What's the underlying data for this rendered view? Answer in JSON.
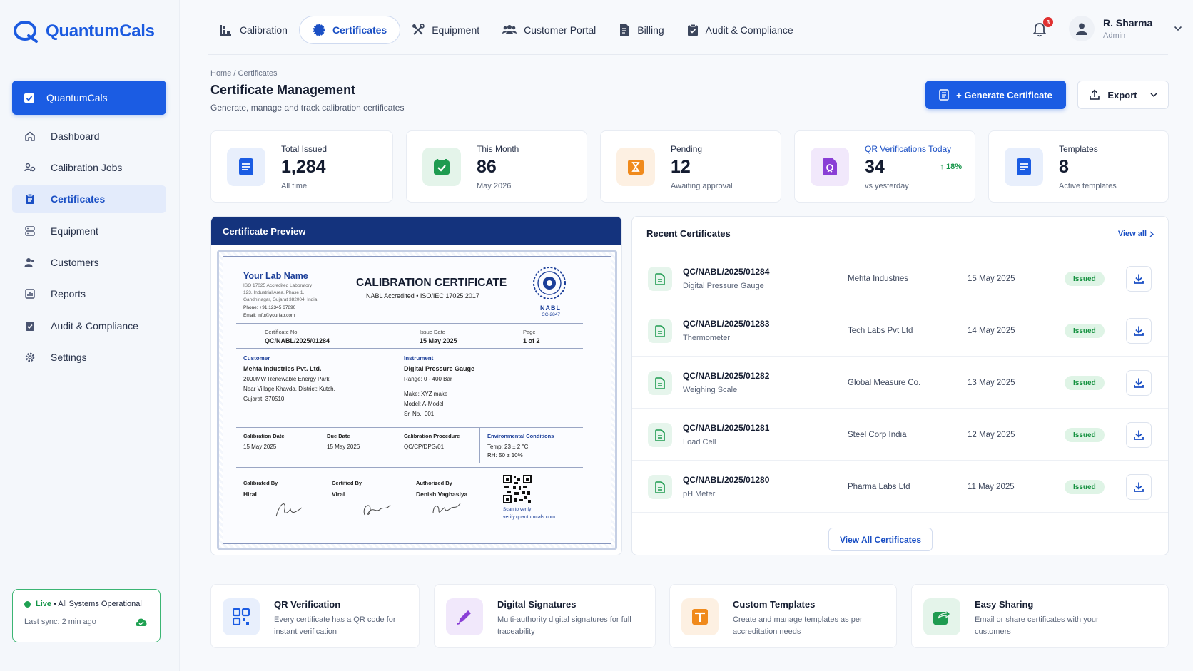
{
  "app": {
    "name": "QuantumCals"
  },
  "sidebar": {
    "brand_label": "QuantumCals",
    "items": [
      {
        "label": "Dashboard",
        "icon": "home-icon"
      },
      {
        "label": "Calibration Jobs",
        "icon": "users-gear-icon"
      },
      {
        "label": "Certificates",
        "icon": "certificate-icon",
        "active": true
      },
      {
        "label": "Equipment",
        "icon": "equipment-icon"
      },
      {
        "label": "Customers",
        "icon": "customers-icon"
      },
      {
        "label": "Reports",
        "icon": "reports-icon"
      },
      {
        "label": "Audit & Compliance",
        "icon": "clipboard-check-icon"
      },
      {
        "label": "Settings",
        "icon": "gear-icon"
      }
    ],
    "status": {
      "live": "Live",
      "text": "• All Systems Operational",
      "sync": "Last sync: 2 min ago"
    }
  },
  "topnav": {
    "tabs": [
      {
        "label": "Calibration",
        "icon": "calibration-icon"
      },
      {
        "label": "Certificates",
        "icon": "badge-icon",
        "active": true
      },
      {
        "label": "Equipment",
        "icon": "tools-icon"
      },
      {
        "label": "Customer Portal",
        "icon": "people-icon"
      },
      {
        "label": "Billing",
        "icon": "billing-icon"
      },
      {
        "label": "Audit & Compliance",
        "icon": "clipboard-icon"
      }
    ],
    "notifications": "3",
    "user": {
      "name": "R. Sharma",
      "role": "Admin"
    }
  },
  "page": {
    "breadcrumb": "Home / Certificates",
    "title": "Certificate Management",
    "subtitle": "Generate, manage and track calibration certificates",
    "generate_label": "+ Generate Certificate",
    "export_label": "Export"
  },
  "stats": [
    {
      "label": "Total Issued",
      "value": "1,284",
      "sub": "All time",
      "color": "#1b5ce3"
    },
    {
      "label": "This Month",
      "value": "86",
      "sub": "May 2026",
      "color": "#1e9b50"
    },
    {
      "label": "Pending",
      "value": "12",
      "sub": "Awaiting approval",
      "color": "#f08a1c"
    },
    {
      "label": "QR Verifications Today",
      "value": "34",
      "sub": "vs yesterday",
      "trend": "↑ 18%",
      "color": "#8a3fd6"
    },
    {
      "label": "Templates",
      "value": "8",
      "sub": "Active templates",
      "color": "#1b5ce3"
    }
  ],
  "preview": {
    "header": "Certificate Preview",
    "lab_name": "Your Lab Name",
    "lab_lines": [
      "ISO 17025 Accredited Laboratory",
      "123, Industrial Area, Phase 1,",
      "Gandhinagar, Gujarat 382004, India",
      "Phone: +91 12345 67890",
      "Email: info@yourlab.com"
    ],
    "title": "CALIBRATION CERTIFICATE",
    "accreditation": "NABL Accredited • ISO/IEC 17025:2017",
    "seal_text": "NABL",
    "seal_code": "CC-2847",
    "cert_no_label": "Certificate No.",
    "cert_no": "QC/NABL/2025/01284",
    "issue_label": "Issue Date",
    "issue_date": "15 May 2025",
    "page_label": "Page",
    "page": "1 of 2",
    "customer_label": "Customer",
    "customer_name": "Mehta Industries Pvt. Ltd.",
    "customer_addr": [
      "2000MW Renewable Energy Park,",
      "Near Village Khavda, District: Kutch,",
      "Gujarat, 370510"
    ],
    "instrument_label": "Instrument",
    "instrument_name": "Digital Pressure Gauge",
    "instrument_lines": [
      "Range: 0 - 400 Bar",
      "Make: XYZ make",
      "Model: A-Model",
      "Sr. No.: 001"
    ],
    "cal_date_label": "Calibration Date",
    "cal_date": "15 May 2025",
    "due_label": "Due Date",
    "due_date": "15 May 2026",
    "proc_label": "Calibration Procedure",
    "proc": "QC/CP/DPG/01",
    "env_label": "Environmental Conditions",
    "env": [
      "Temp: 23 ± 2 °C",
      "RH: 50 ± 10%"
    ],
    "calibrated_label": "Calibrated By",
    "calibrated": "Hiral",
    "certified_label": "Certified By",
    "certified": "Viral",
    "authorized_label": "Authorized By",
    "authorized": "Denish Vaghasiya",
    "scan_label": "Scan to verify",
    "verify_url": "verify.quantumcals.com"
  },
  "recent": {
    "title": "Recent Certificates",
    "view_all": "View all",
    "view_all_button": "View All Certificates",
    "rows": [
      {
        "id": "QC/NABL/2025/01284",
        "instrument": "Digital Pressure Gauge",
        "customer": "Mehta Industries",
        "date": "15 May 2025",
        "status": "Issued"
      },
      {
        "id": "QC/NABL/2025/01283",
        "instrument": "Thermometer",
        "customer": "Tech Labs Pvt Ltd",
        "date": "14 May 2025",
        "status": "Issued"
      },
      {
        "id": "QC/NABL/2025/01282",
        "instrument": "Weighing Scale",
        "customer": "Global Measure Co.",
        "date": "13 May 2025",
        "status": "Issued"
      },
      {
        "id": "QC/NABL/2025/01281",
        "instrument": "Load Cell",
        "customer": "Steel Corp India",
        "date": "12 May 2025",
        "status": "Issued"
      },
      {
        "id": "QC/NABL/2025/01280",
        "instrument": "pH Meter",
        "customer": "Pharma Labs Ltd",
        "date": "11 May 2025",
        "status": "Issued"
      }
    ]
  },
  "features": [
    {
      "title": "QR Verification",
      "desc": "Every certificate has a QR code for instant verification",
      "icon": "qr-icon"
    },
    {
      "title": "Digital Signatures",
      "desc": "Multi-authority digital signatures for full traceability",
      "icon": "pen-icon"
    },
    {
      "title": "Custom Templates",
      "desc": "Create and manage templates as per accreditation needs",
      "icon": "template-icon"
    },
    {
      "title": "Easy Sharing",
      "desc": "Email or share certificates with your customers",
      "icon": "share-icon"
    }
  ]
}
